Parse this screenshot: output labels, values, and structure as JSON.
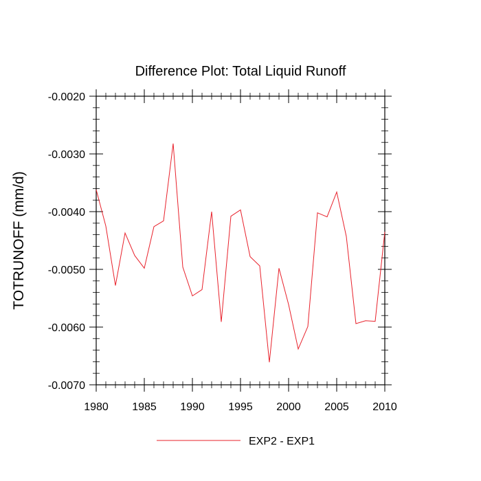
{
  "chart_data": {
    "type": "line",
    "title": "Difference Plot: Total Liquid Runoff",
    "xlabel": "",
    "ylabel": "TOTRUNOFF  (mm/d)",
    "xlim": [
      1980,
      2010
    ],
    "ylim": [
      -0.007,
      -0.002
    ],
    "x_ticks": [
      1980,
      1985,
      1990,
      1995,
      2000,
      2005,
      2010
    ],
    "x_tick_labels": [
      "1980",
      "1985",
      "1990",
      "1995",
      "2000",
      "2005",
      "2010"
    ],
    "y_ticks": [
      -0.002,
      -0.003,
      -0.004,
      -0.005,
      -0.006,
      -0.007
    ],
    "y_tick_labels": [
      "-0.0020",
      "-0.0030",
      "-0.0040",
      "-0.0050",
      "-0.0060",
      "-0.0070"
    ],
    "grid": false,
    "legend_position": "bottom-center",
    "series": [
      {
        "name": "EXP2 - EXP1",
        "color": "#e8202a",
        "x": [
          1980,
          1981,
          1982,
          1983,
          1984,
          1985,
          1986,
          1987,
          1988,
          1989,
          1990,
          1991,
          1992,
          1993,
          1994,
          1995,
          1996,
          1997,
          1998,
          1999,
          2000,
          2001,
          2002,
          2003,
          2004,
          2005,
          2006,
          2007,
          2008,
          2009,
          2010
        ],
        "y": [
          -0.00362,
          -0.00425,
          -0.00528,
          -0.00437,
          -0.00476,
          -0.00498,
          -0.00426,
          -0.00416,
          -0.00282,
          -0.00496,
          -0.00546,
          -0.00535,
          -0.004,
          -0.00591,
          -0.00408,
          -0.00397,
          -0.00478,
          -0.00494,
          -0.00661,
          -0.00498,
          -0.00561,
          -0.00638,
          -0.00599,
          -0.00402,
          -0.00409,
          -0.00366,
          -0.00443,
          -0.00594,
          -0.00589,
          -0.0059,
          -0.00435
        ]
      }
    ]
  }
}
